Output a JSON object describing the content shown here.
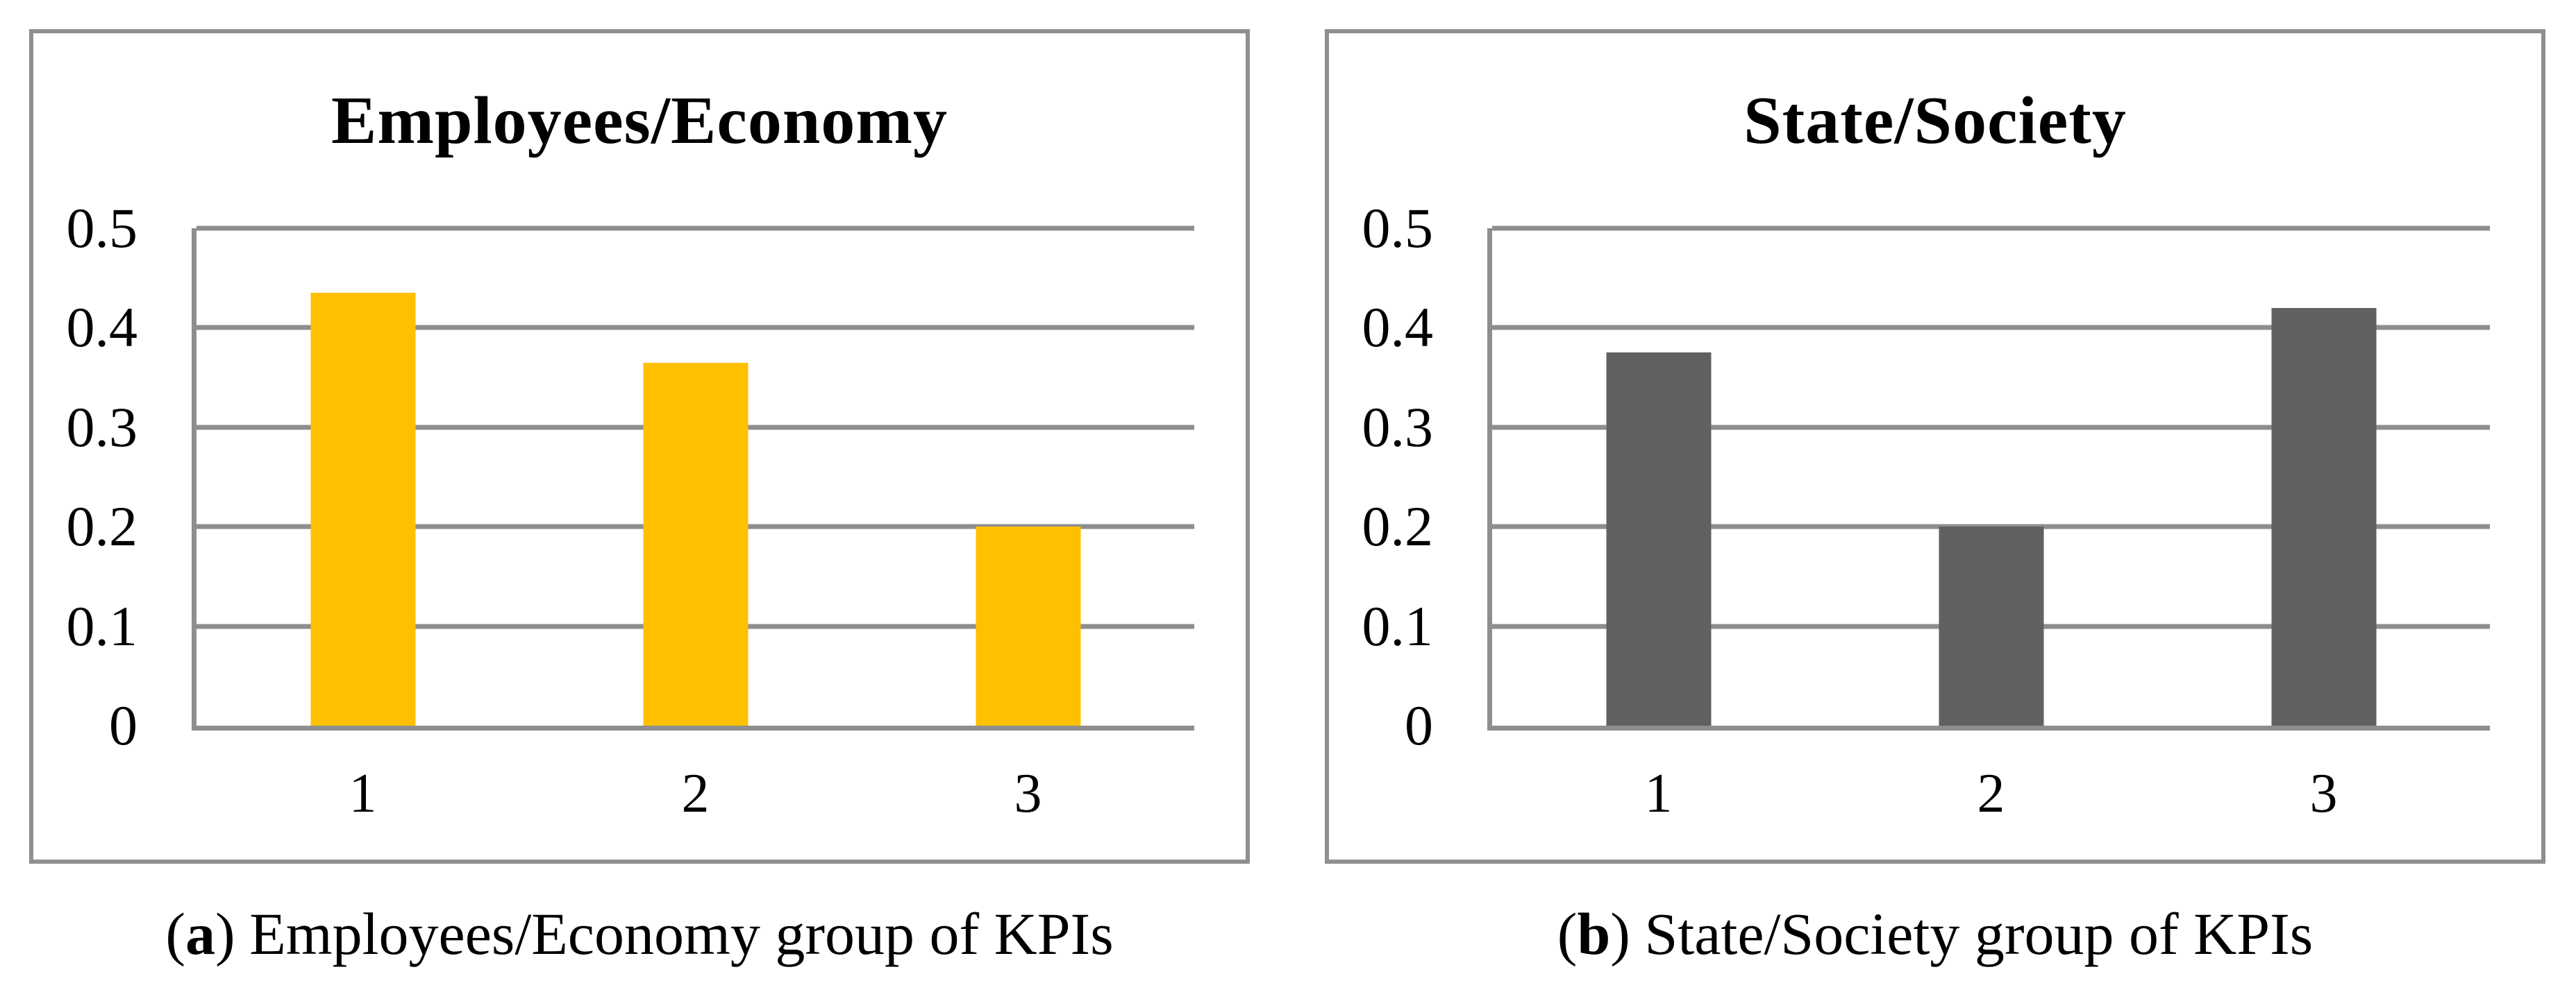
{
  "figure": {
    "panels": [
      {
        "title": "Employees/Economy",
        "caption": {
          "open": "(",
          "letter": "a",
          "close": ")",
          "text": "Employees/Economy group of KPIs"
        }
      },
      {
        "title": "State/Society",
        "caption": {
          "open": "(",
          "letter": "b",
          "close": ")",
          "text": "State/Society group of KPIs"
        }
      }
    ]
  },
  "chart_data": [
    {
      "type": "bar",
      "title": "Employees/Economy",
      "categories": [
        "1",
        "2",
        "3"
      ],
      "values": [
        0.435,
        0.365,
        0.2
      ],
      "bar_color": "#FFC000",
      "xlabel": "",
      "ylabel": "",
      "ylim": [
        0,
        0.5
      ],
      "yticks": [
        0,
        0.1,
        0.2,
        0.3,
        0.4,
        0.5
      ],
      "ytick_labels": [
        "0",
        "0.1",
        "0.2",
        "0.3",
        "0.4",
        "0.5"
      ],
      "grid": true,
      "legend": false
    },
    {
      "type": "bar",
      "title": "State/Society",
      "categories": [
        "1",
        "2",
        "3"
      ],
      "values": [
        0.375,
        0.2,
        0.42
      ],
      "bar_color": "#616161",
      "xlabel": "",
      "ylabel": "",
      "ylim": [
        0,
        0.5
      ],
      "yticks": [
        0,
        0.1,
        0.2,
        0.3,
        0.4,
        0.5
      ],
      "ytick_labels": [
        "0",
        "0.1",
        "0.2",
        "0.3",
        "0.4",
        "0.5"
      ],
      "grid": true,
      "legend": false
    }
  ],
  "styles": {
    "grid_color": "#8e8e8e",
    "panel_border_color": "#8f8f8f",
    "background": "#ffffff",
    "text_color": "#000000"
  }
}
